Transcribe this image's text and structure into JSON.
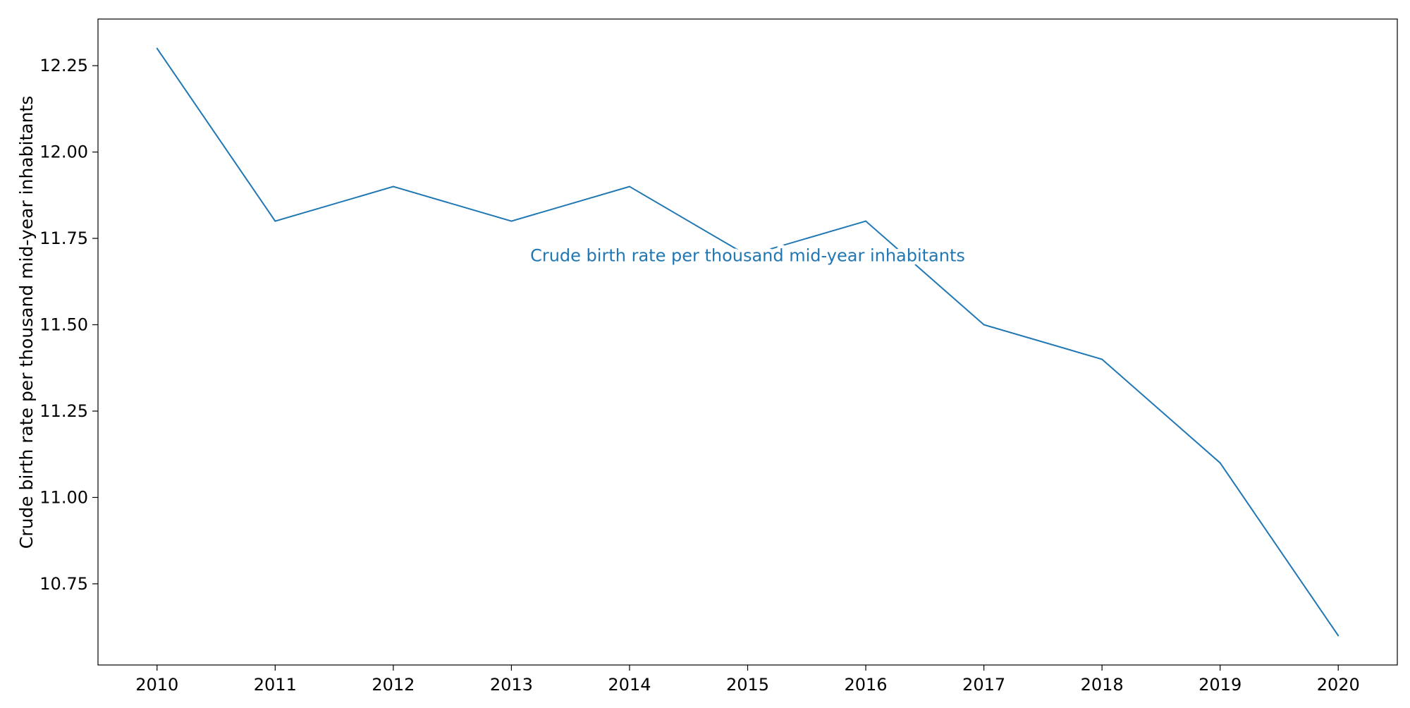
{
  "chart_data": {
    "type": "line",
    "title": "",
    "xlabel": "",
    "ylabel": "Crude birth rate per thousand mid-year inhabitants",
    "x": [
      2010,
      2011,
      2012,
      2013,
      2014,
      2015,
      2016,
      2017,
      2018,
      2019,
      2020
    ],
    "series": [
      {
        "values": [
          12.3,
          11.8,
          11.9,
          11.8,
          11.9,
          11.7,
          11.8,
          11.5,
          11.4,
          11.1,
          10.6
        ],
        "color": "#1f77b4"
      }
    ],
    "annotation": {
      "text": "Crude birth rate per thousand mid-year inhabitants",
      "color": "#1f77b4",
      "x": 2015,
      "y": 11.7
    },
    "xticks": [
      "2010",
      "2011",
      "2012",
      "2013",
      "2014",
      "2015",
      "2016",
      "2017",
      "2018",
      "2019",
      "2020"
    ],
    "yticks": [
      "10.75",
      "11.00",
      "11.25",
      "11.50",
      "11.75",
      "12.00",
      "12.25"
    ],
    "xlim": [
      2009.5,
      2020.5
    ],
    "ylim": [
      10.515,
      12.385
    ],
    "grid": false,
    "legend": "none"
  }
}
